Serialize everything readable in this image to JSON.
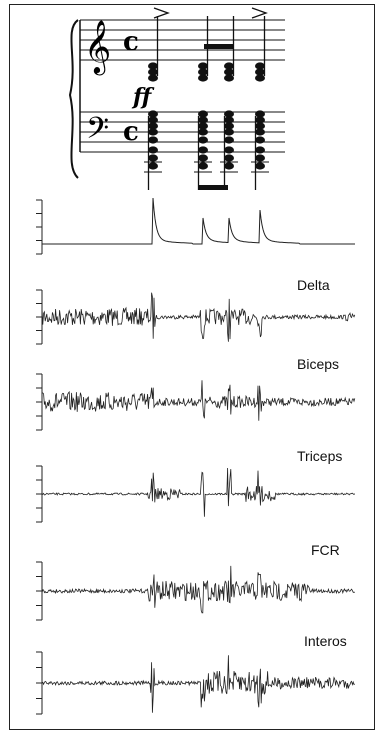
{
  "score": {
    "dynamic": "ff",
    "time_signature": "c"
  },
  "traces": [
    {
      "id": "force",
      "label": ""
    },
    {
      "id": "delta",
      "label": "Delta"
    },
    {
      "id": "biceps",
      "label": "Biceps"
    },
    {
      "id": "triceps",
      "label": "Triceps"
    },
    {
      "id": "fcr",
      "label": "FCR"
    },
    {
      "id": "interos",
      "label": "Interos"
    }
  ],
  "chord_onsets": [
    153,
    203,
    229,
    260
  ]
}
